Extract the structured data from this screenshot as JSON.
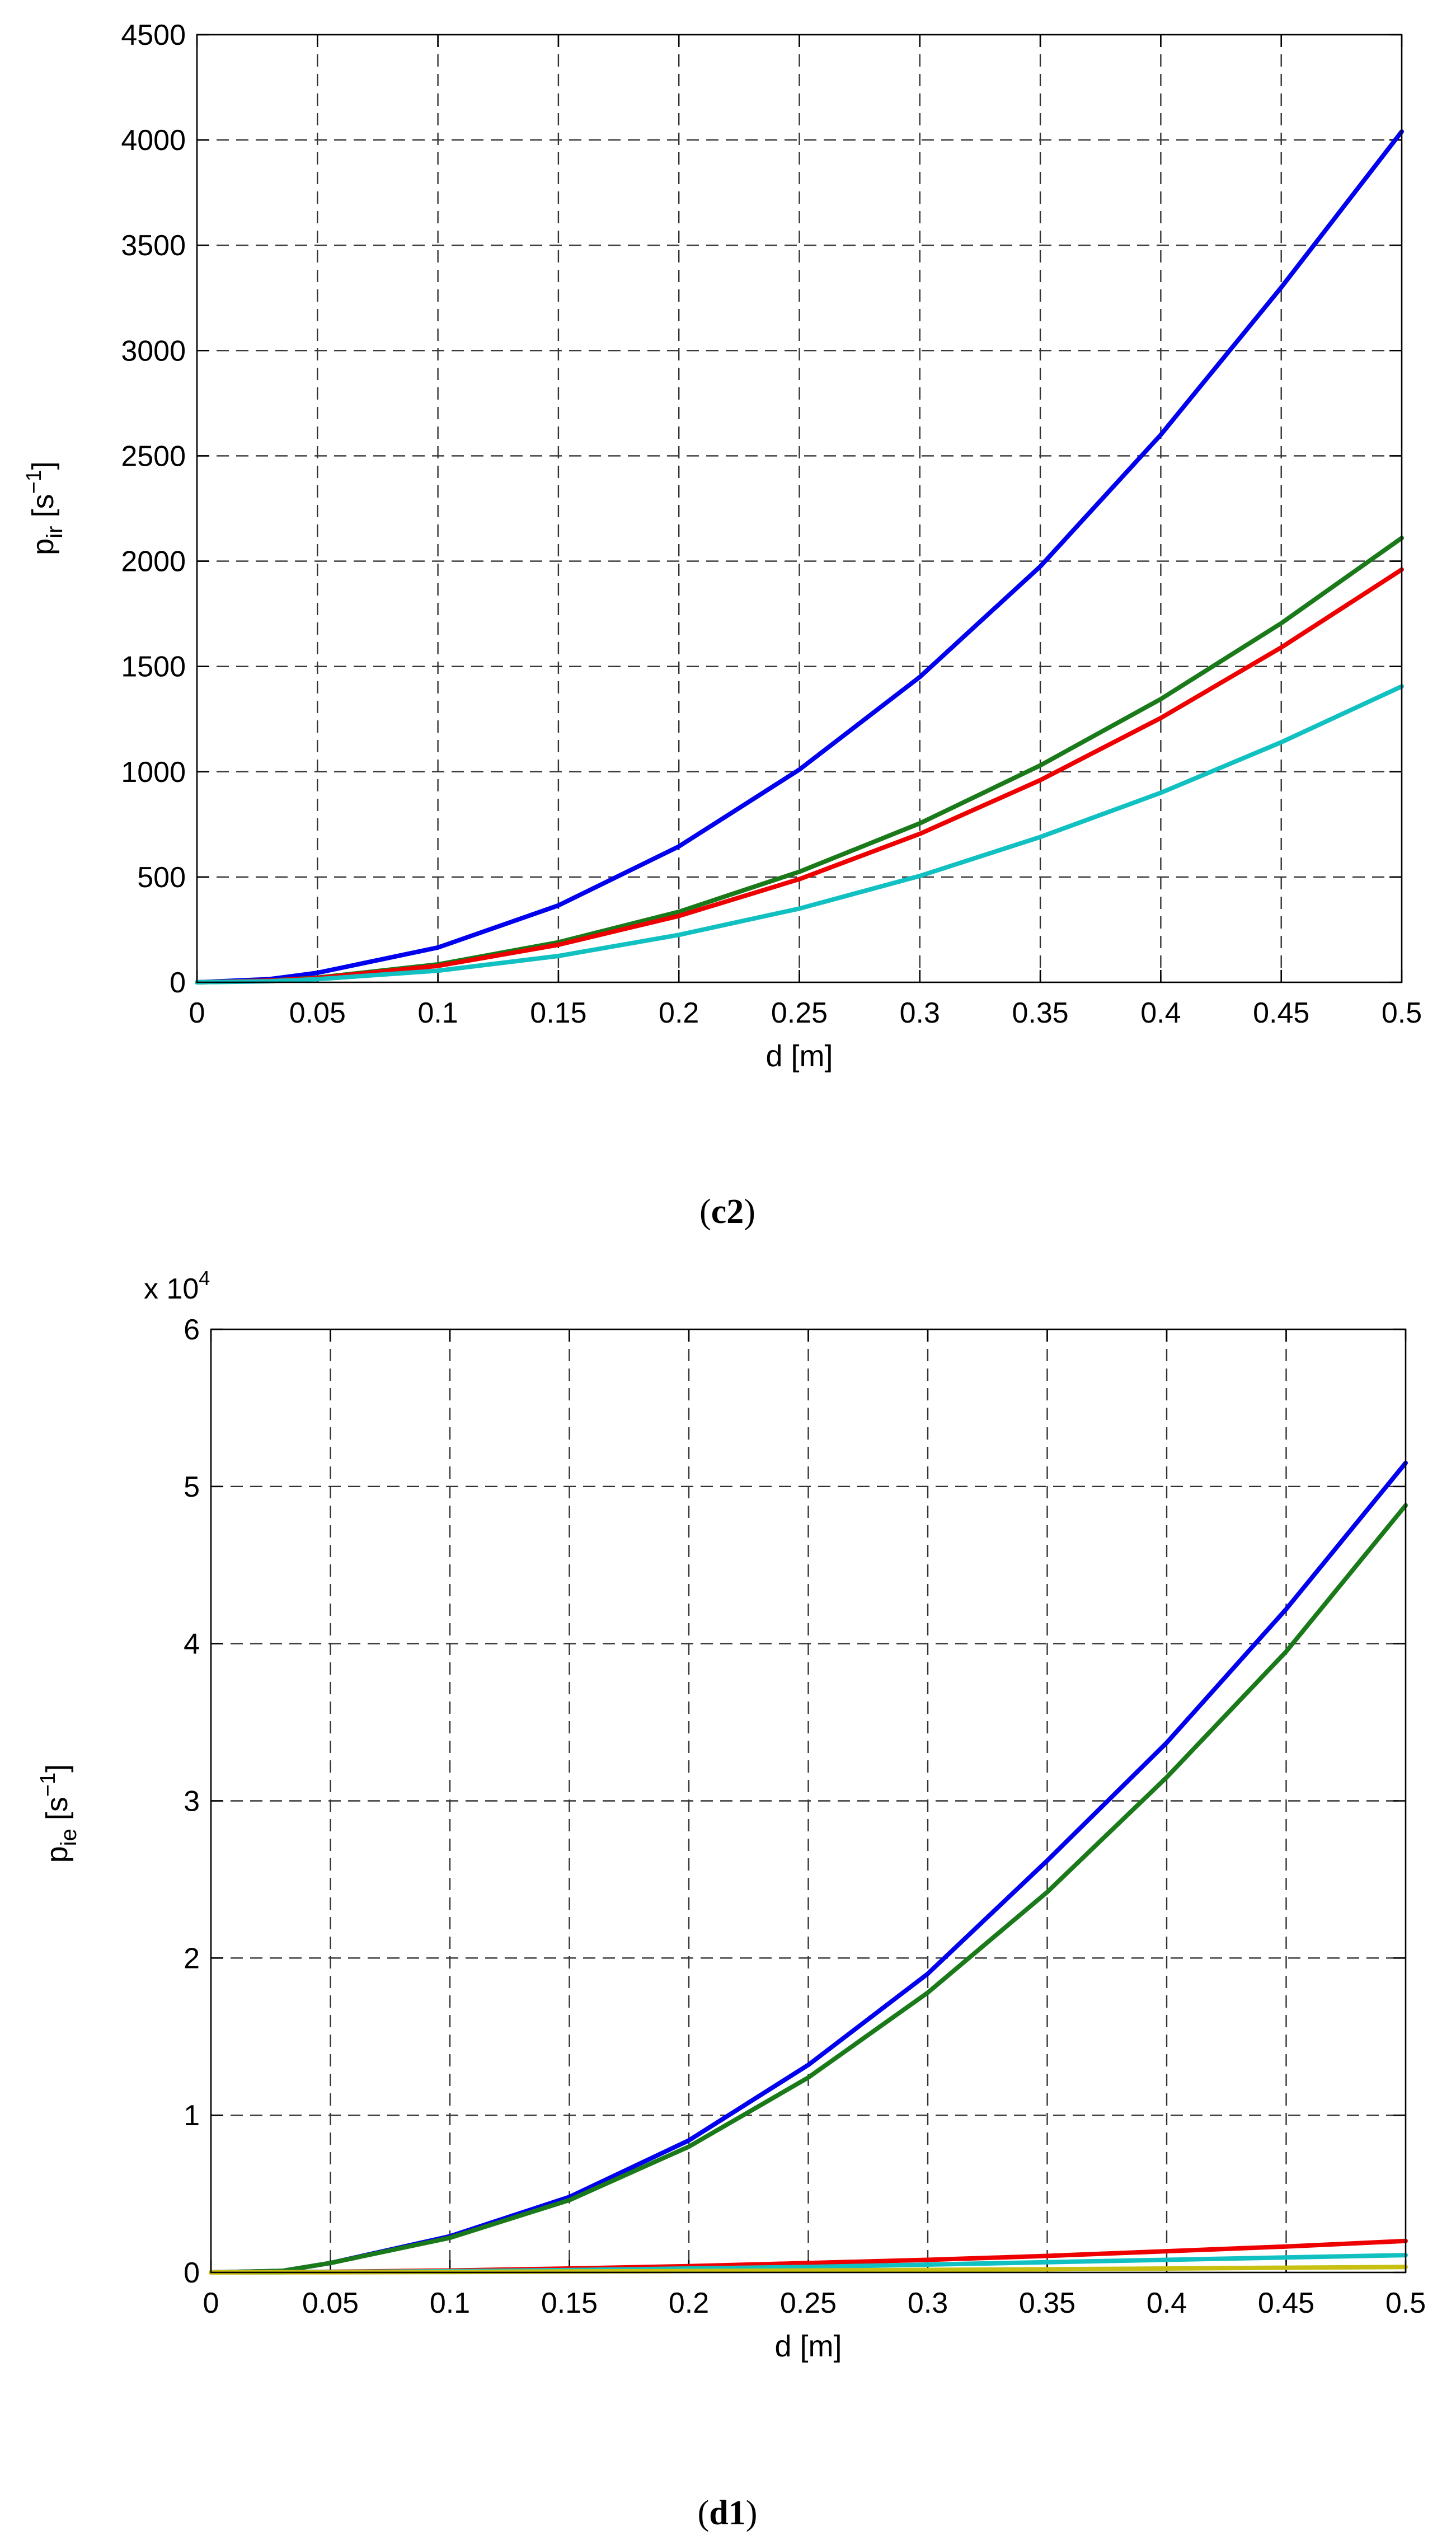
{
  "chart_data": [
    {
      "type": "line",
      "panel_caption": {
        "open": "(",
        "bold": "c2",
        "close": ")"
      },
      "xlabel": "d [m]",
      "ylabel": {
        "main": "p",
        "sub": "ir",
        "unit_open": " [s",
        "unit_sup": "−1",
        "unit_close": "]"
      },
      "xlim": [
        0,
        0.5
      ],
      "ylim": [
        0,
        4500
      ],
      "grid": true,
      "x_ticks": [
        0,
        0.05,
        0.1,
        0.15,
        0.2,
        0.25,
        0.3,
        0.35,
        0.4,
        0.45,
        0.5
      ],
      "x_tick_labels": [
        "0",
        "0.05",
        "0.1",
        "0.15",
        "0.2",
        "0.25",
        "0.3",
        "0.35",
        "0.4",
        "0.45",
        "0.5"
      ],
      "y_ticks": [
        0,
        500,
        1000,
        1500,
        2000,
        2500,
        3000,
        3500,
        4000,
        4500
      ],
      "y_tick_labels": [
        "0",
        "500",
        "1000",
        "1500",
        "2000",
        "2500",
        "3000",
        "3500",
        "4000",
        "4500"
      ],
      "x": [
        0,
        0.03,
        0.05,
        0.1,
        0.15,
        0.2,
        0.25,
        0.3,
        0.35,
        0.4,
        0.45,
        0.5
      ],
      "series": [
        {
          "color": "#0000ee",
          "values": [
            0,
            15,
            45,
            165,
            365,
            645,
            1010,
            1450,
            1975,
            2600,
            3300,
            4040
          ]
        },
        {
          "color": "#1a7a1a",
          "values": [
            0,
            8,
            22,
            85,
            190,
            335,
            525,
            755,
            1030,
            1345,
            1705,
            2110
          ]
        },
        {
          "color": "#ee0000",
          "values": [
            0,
            8,
            20,
            78,
            178,
            315,
            490,
            705,
            960,
            1255,
            1590,
            1960
          ]
        },
        {
          "color": "#11c0c0",
          "values": [
            0,
            5,
            15,
            55,
            125,
            225,
            350,
            505,
            690,
            900,
            1140,
            1405
          ]
        }
      ]
    },
    {
      "type": "line",
      "panel_caption": {
        "open": "(",
        "bold": "d1",
        "close": ")"
      },
      "xlabel": "d [m]",
      "ylabel": {
        "main": "p",
        "sub": "ie",
        "unit_open": " [s",
        "unit_sup": "−1",
        "unit_close": "]"
      },
      "y_multiplier": {
        "base": "x 10",
        "exp": "4"
      },
      "xlim": [
        0,
        0.5
      ],
      "ylim": [
        0,
        6
      ],
      "grid": true,
      "x_ticks": [
        0,
        0.05,
        0.1,
        0.15,
        0.2,
        0.25,
        0.3,
        0.35,
        0.4,
        0.45,
        0.5
      ],
      "x_tick_labels": [
        "0",
        "0.05",
        "0.1",
        "0.15",
        "0.2",
        "0.25",
        "0.3",
        "0.35",
        "0.4",
        "0.45",
        "0.5"
      ],
      "y_ticks": [
        0,
        1,
        2,
        3,
        4,
        5,
        6
      ],
      "y_tick_labels": [
        "0",
        "1",
        "2",
        "3",
        "4",
        "5",
        "6"
      ],
      "x": [
        0,
        0.03,
        0.05,
        0.1,
        0.15,
        0.2,
        0.25,
        0.3,
        0.35,
        0.4,
        0.45,
        0.5
      ],
      "series": [
        {
          "color": "#0000ee",
          "values": [
            0,
            0.01,
            0.06,
            0.23,
            0.48,
            0.84,
            1.32,
            1.9,
            2.62,
            3.37,
            4.22,
            5.15
          ]
        },
        {
          "color": "#1a7a1a",
          "values": [
            0,
            0.01,
            0.06,
            0.22,
            0.46,
            0.8,
            1.24,
            1.78,
            2.42,
            3.15,
            3.95,
            4.88
          ]
        },
        {
          "color": "#ee0000",
          "values": [
            0,
            0.002,
            0.004,
            0.012,
            0.025,
            0.04,
            0.06,
            0.08,
            0.105,
            0.135,
            0.165,
            0.2
          ]
        },
        {
          "color": "#11c0c0",
          "values": [
            0,
            0.001,
            0.003,
            0.008,
            0.015,
            0.025,
            0.035,
            0.05,
            0.065,
            0.08,
            0.095,
            0.11
          ]
        },
        {
          "color": "#c8c010",
          "values": [
            0,
            0.001,
            0.001,
            0.003,
            0.006,
            0.009,
            0.012,
            0.016,
            0.02,
            0.025,
            0.03,
            0.035
          ]
        }
      ]
    }
  ]
}
